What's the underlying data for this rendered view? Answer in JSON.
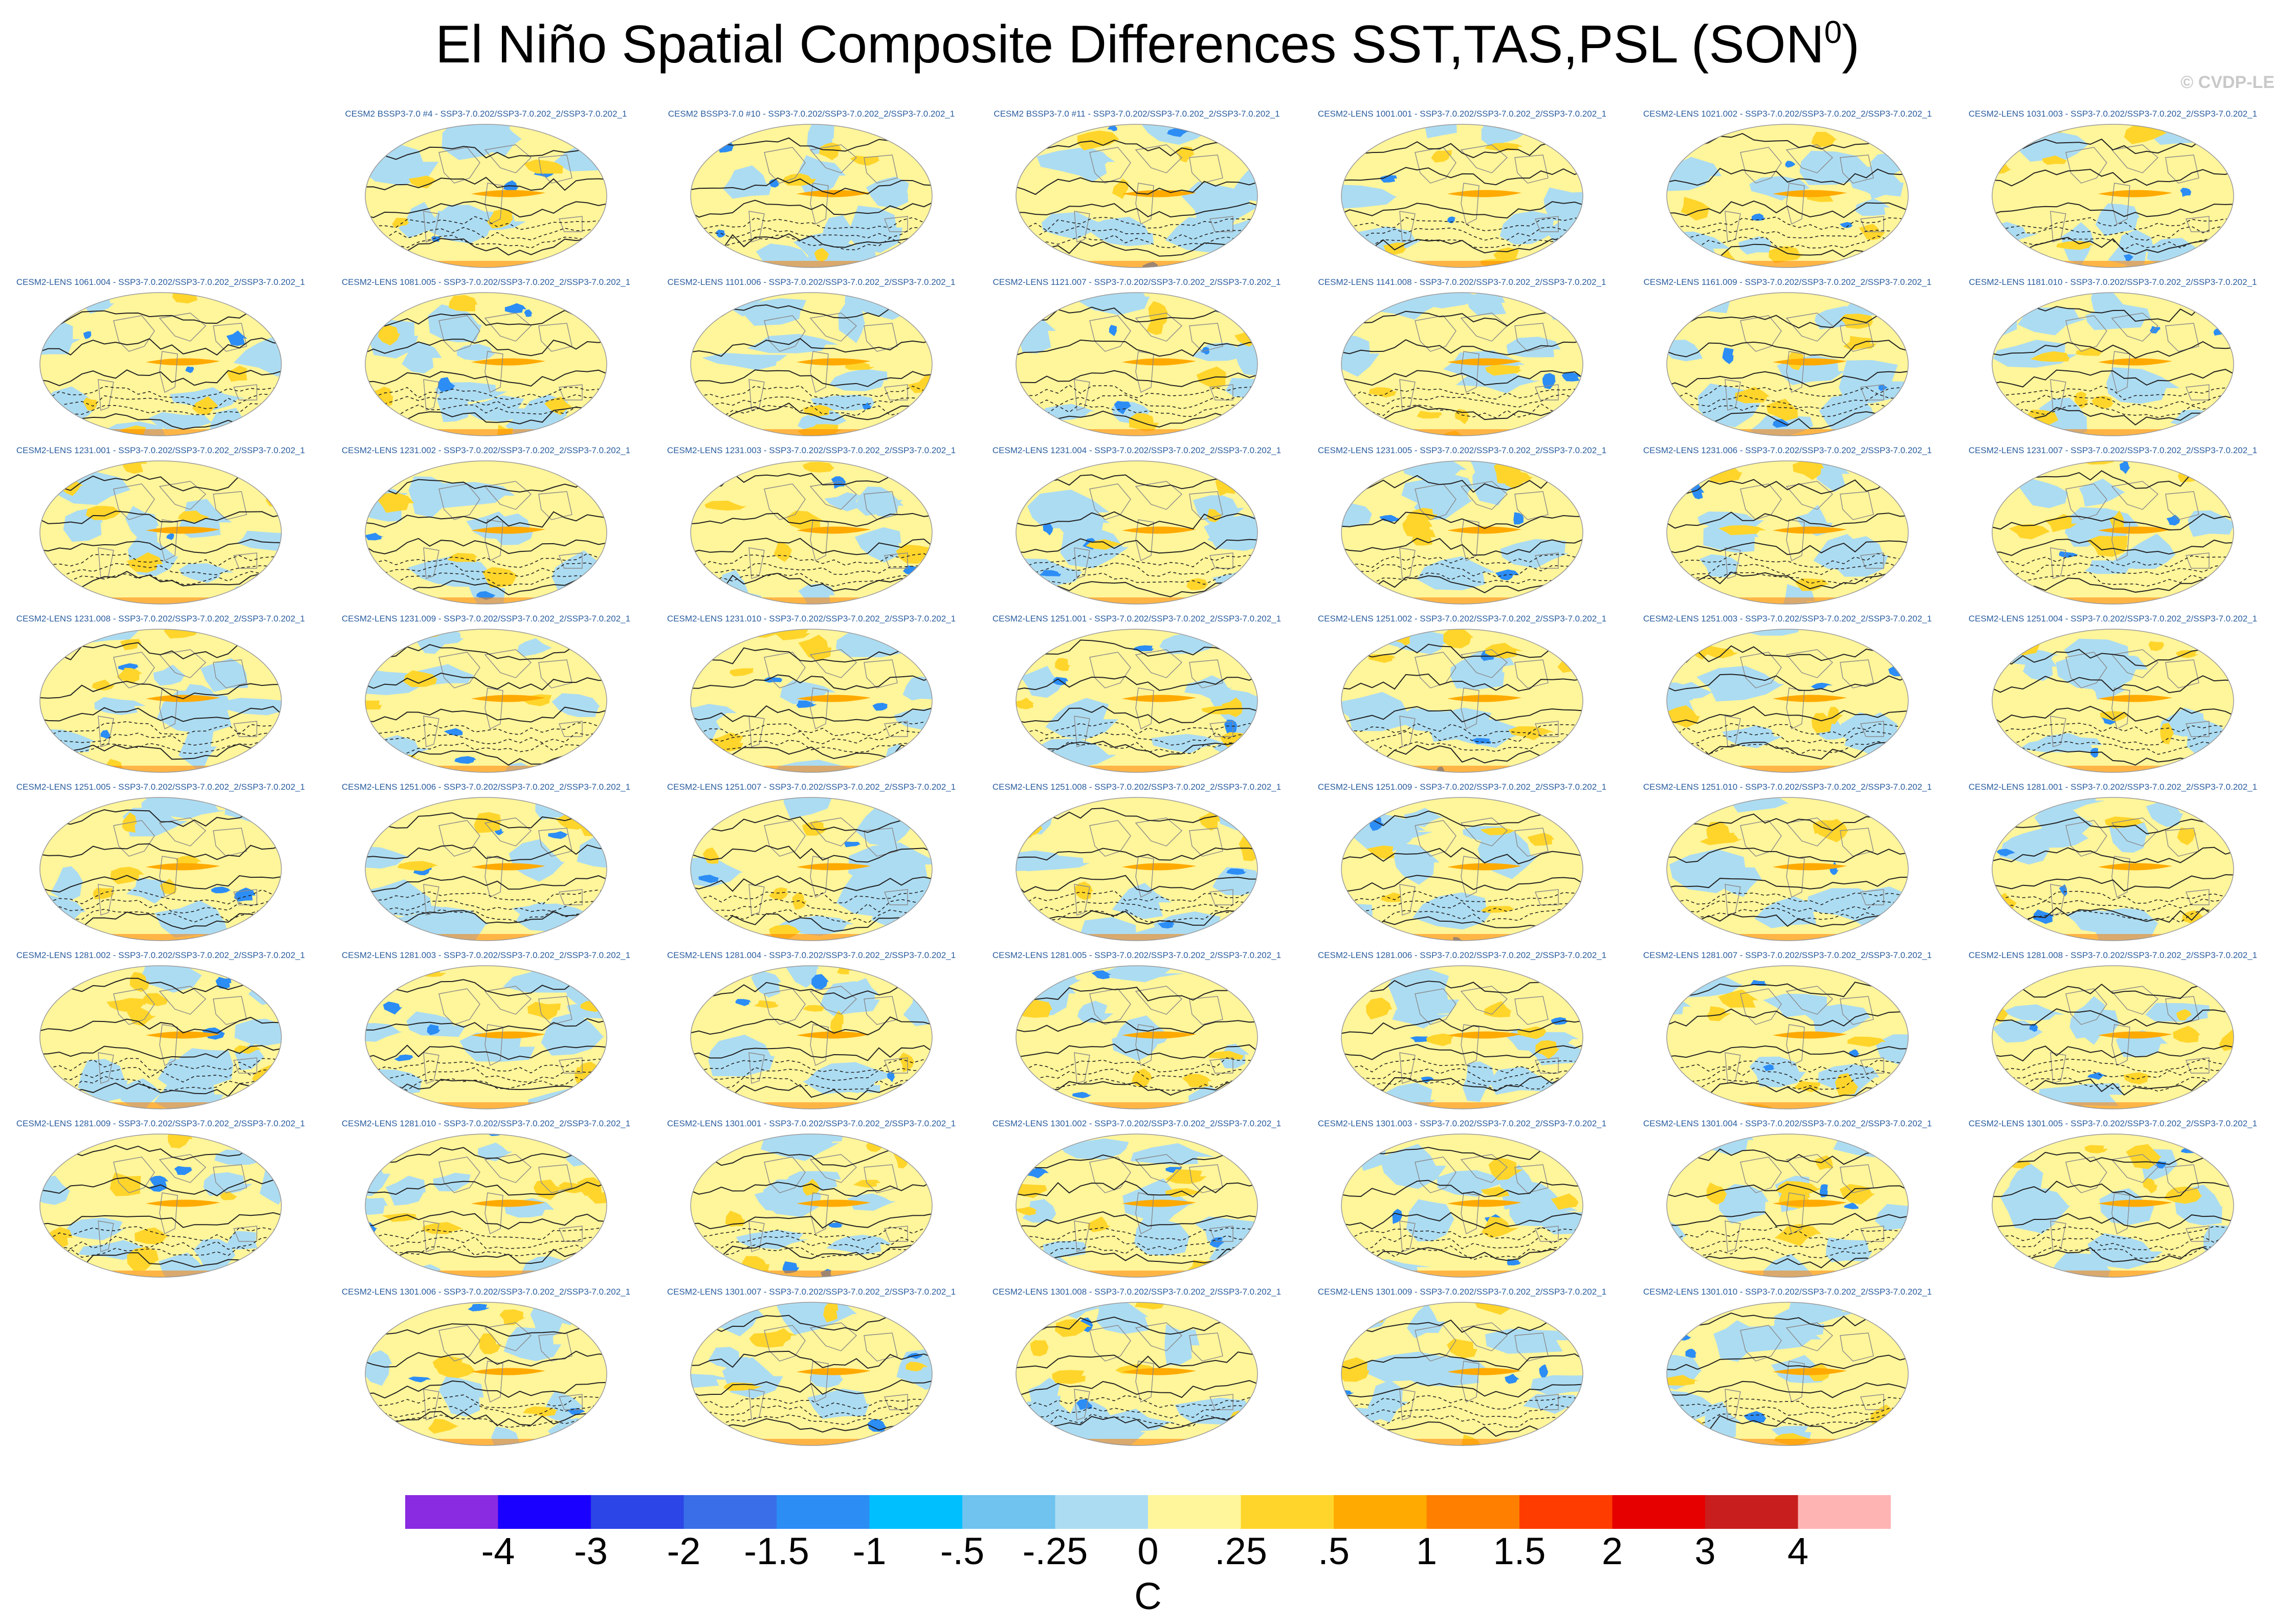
{
  "title": "El Niño Spatial Composite Differences SST,TAS,PSL (SON",
  "title_superscript": "0",
  "title_close": ")",
  "watermark": "© CVDP-LE",
  "panels": [
    "CESM2 BSSP3-7.0 #4 - SSP3-7.0.202/SSP3-7.0.202_2/SSP3-7.0.202_1",
    "CESM2 BSSP3-7.0 #10 - SSP3-7.0.202/SSP3-7.0.202_2/SSP3-7.0.202_1",
    "CESM2 BSSP3-7.0 #11 - SSP3-7.0.202/SSP3-7.0.202_2/SSP3-7.0.202_1",
    "CESM2-LENS 1001.001 - SSP3-7.0.202/SSP3-7.0.202_2/SSP3-7.0.202_1",
    "CESM2-LENS 1021.002 - SSP3-7.0.202/SSP3-7.0.202_2/SSP3-7.0.202_1",
    "CESM2-LENS 1031.003 - SSP3-7.0.202/SSP3-7.0.202_2/SSP3-7.0.202_1",
    "CESM2-LENS 1061.004 - SSP3-7.0.202/SSP3-7.0.202_2/SSP3-7.0.202_1",
    "CESM2-LENS 1081.005 - SSP3-7.0.202/SSP3-7.0.202_2/SSP3-7.0.202_1",
    "CESM2-LENS 1101.006 - SSP3-7.0.202/SSP3-7.0.202_2/SSP3-7.0.202_1",
    "CESM2-LENS 1121.007 - SSP3-7.0.202/SSP3-7.0.202_2/SSP3-7.0.202_1",
    "CESM2-LENS 1141.008 - SSP3-7.0.202/SSP3-7.0.202_2/SSP3-7.0.202_1",
    "CESM2-LENS 1161.009 - SSP3-7.0.202/SSP3-7.0.202_2/SSP3-7.0.202_1",
    "CESM2-LENS 1181.010 - SSP3-7.0.202/SSP3-7.0.202_2/SSP3-7.0.202_1",
    "CESM2-LENS 1231.001 - SSP3-7.0.202/SSP3-7.0.202_2/SSP3-7.0.202_1",
    "CESM2-LENS 1231.002 - SSP3-7.0.202/SSP3-7.0.202_2/SSP3-7.0.202_1",
    "CESM2-LENS 1231.003 - SSP3-7.0.202/SSP3-7.0.202_2/SSP3-7.0.202_1",
    "CESM2-LENS 1231.004 - SSP3-7.0.202/SSP3-7.0.202_2/SSP3-7.0.202_1",
    "CESM2-LENS 1231.005 - SSP3-7.0.202/SSP3-7.0.202_2/SSP3-7.0.202_1",
    "CESM2-LENS 1231.006 - SSP3-7.0.202/SSP3-7.0.202_2/SSP3-7.0.202_1",
    "CESM2-LENS 1231.007 - SSP3-7.0.202/SSP3-7.0.202_2/SSP3-7.0.202_1",
    "CESM2-LENS 1231.008 - SSP3-7.0.202/SSP3-7.0.202_2/SSP3-7.0.202_1",
    "CESM2-LENS 1231.009 - SSP3-7.0.202/SSP3-7.0.202_2/SSP3-7.0.202_1",
    "CESM2-LENS 1231.010 - SSP3-7.0.202/SSP3-7.0.202_2/SSP3-7.0.202_1",
    "CESM2-LENS 1251.001 - SSP3-7.0.202/SSP3-7.0.202_2/SSP3-7.0.202_1",
    "CESM2-LENS 1251.002 - SSP3-7.0.202/SSP3-7.0.202_2/SSP3-7.0.202_1",
    "CESM2-LENS 1251.003 - SSP3-7.0.202/SSP3-7.0.202_2/SSP3-7.0.202_1",
    "CESM2-LENS 1251.004 - SSP3-7.0.202/SSP3-7.0.202_2/SSP3-7.0.202_1",
    "CESM2-LENS 1251.005 - SSP3-7.0.202/SSP3-7.0.202_2/SSP3-7.0.202_1",
    "CESM2-LENS 1251.006 - SSP3-7.0.202/SSP3-7.0.202_2/SSP3-7.0.202_1",
    "CESM2-LENS 1251.007 - SSP3-7.0.202/SSP3-7.0.202_2/SSP3-7.0.202_1",
    "CESM2-LENS 1251.008 - SSP3-7.0.202/SSP3-7.0.202_2/SSP3-7.0.202_1",
    "CESM2-LENS 1251.009 - SSP3-7.0.202/SSP3-7.0.202_2/SSP3-7.0.202_1",
    "CESM2-LENS 1251.010 - SSP3-7.0.202/SSP3-7.0.202_2/SSP3-7.0.202_1",
    "CESM2-LENS 1281.001 - SSP3-7.0.202/SSP3-7.0.202_2/SSP3-7.0.202_1",
    "CESM2-LENS 1281.002 - SSP3-7.0.202/SSP3-7.0.202_2/SSP3-7.0.202_1",
    "CESM2-LENS 1281.003 - SSP3-7.0.202/SSP3-7.0.202_2/SSP3-7.0.202_1",
    "CESM2-LENS 1281.004 - SSP3-7.0.202/SSP3-7.0.202_2/SSP3-7.0.202_1",
    "CESM2-LENS 1281.005 - SSP3-7.0.202/SSP3-7.0.202_2/SSP3-7.0.202_1",
    "CESM2-LENS 1281.006 - SSP3-7.0.202/SSP3-7.0.202_2/SSP3-7.0.202_1",
    "CESM2-LENS 1281.007 - SSP3-7.0.202/SSP3-7.0.202_2/SSP3-7.0.202_1",
    "CESM2-LENS 1281.008 - SSP3-7.0.202/SSP3-7.0.202_2/SSP3-7.0.202_1",
    "CESM2-LENS 1281.009 - SSP3-7.0.202/SSP3-7.0.202_2/SSP3-7.0.202_1",
    "CESM2-LENS 1281.010 - SSP3-7.0.202/SSP3-7.0.202_2/SSP3-7.0.202_1",
    "CESM2-LENS 1301.001 - SSP3-7.0.202/SSP3-7.0.202_2/SSP3-7.0.202_1",
    "CESM2-LENS 1301.002 - SSP3-7.0.202/SSP3-7.0.202_2/SSP3-7.0.202_1",
    "CESM2-LENS 1301.003 - SSP3-7.0.202/SSP3-7.0.202_2/SSP3-7.0.202_1",
    "CESM2-LENS 1301.004 - SSP3-7.0.202/SSP3-7.0.202_2/SSP3-7.0.202_1",
    "CESM2-LENS 1301.005 - SSP3-7.0.202/SSP3-7.0.202_2/SSP3-7.0.202_1",
    "CESM2-LENS 1301.006 - SSP3-7.0.202/SSP3-7.0.202_2/SSP3-7.0.202_1",
    "CESM2-LENS 1301.007 - SSP3-7.0.202/SSP3-7.0.202_2/SSP3-7.0.202_1",
    "CESM2-LENS 1301.008 - SSP3-7.0.202/SSP3-7.0.202_2/SSP3-7.0.202_1",
    "CESM2-LENS 1301.009 - SSP3-7.0.202/SSP3-7.0.202_2/SSP3-7.0.202_1",
    "CESM2-LENS 1301.010 - SSP3-7.0.202/SSP3-7.0.202_2/SSP3-7.0.202_1"
  ],
  "chart_data": {
    "type": "heatmap",
    "description_type": "grid of global map composites (Hammer projection) of SST/TAS shaded with PSL contours",
    "title": "El Niño Spatial Composite Differences SST,TAS,PSL (SON0)",
    "colorbar": {
      "units": "C",
      "tick_labels": [
        "-4",
        "-3",
        "-2",
        "-1.5",
        "-1",
        "-.5",
        "-.25",
        "0",
        ".25",
        ".5",
        "1",
        "1.5",
        "2",
        "3",
        "4"
      ],
      "colors": [
        "#8a2be2",
        "#1a00ff",
        "#2b45e6",
        "#3a6ee8",
        "#2c8df5",
        "#00bfff",
        "#6fc3ee",
        "#acdcf2",
        "#fff59a",
        "#ffd52b",
        "#ffaa00",
        "#ff7f00",
        "#ff3c00",
        "#e60000",
        "#c81e1e",
        "#ffb4b4"
      ]
    }
  }
}
